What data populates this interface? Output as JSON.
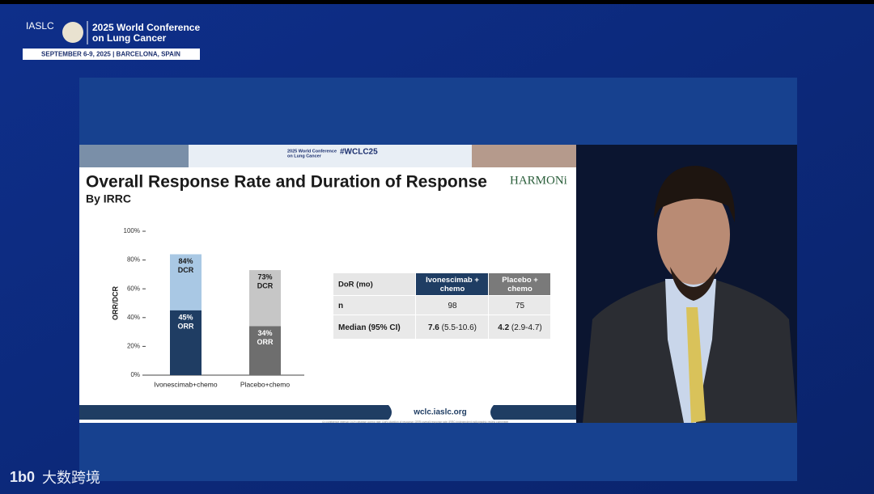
{
  "header": {
    "org": "IASLC",
    "conference": [
      "2025 World Conference",
      "on Lung Cancer"
    ],
    "dates": "SEPTEMBER 6-9, 2025  |  BARCELONA, SPAIN"
  },
  "slide": {
    "banner": {
      "conference": [
        "2025 World Conference",
        "on Lung Cancer"
      ],
      "hashtag": "#WCLC25"
    },
    "title": "Overall Response Rate and Duration of Response",
    "subtitle": "By IRRC",
    "logo": "HARMONi",
    "table": {
      "header": [
        [
          "DoR (mo)"
        ],
        [
          "Ivonescimab +",
          "chemo"
        ],
        [
          "Placebo +",
          "chemo"
        ]
      ],
      "rows": [
        [
          {
            "bold": "n",
            "rest": ""
          },
          {
            "bold": "",
            "rest": "98"
          },
          {
            "bold": "",
            "rest": "75"
          }
        ],
        [
          {
            "bold": "Median (95% CI)",
            "rest": ""
          },
          {
            "bold": "7.6",
            "rest": " (5.5-10.6)"
          },
          {
            "bold": "4.2",
            "rest": " (2.9-4.7)"
          }
        ]
      ]
    },
    "footer": "wclc.iaslc.org",
    "footnote": "CI=confidence interval; DCR=disease control rate; DoR=duration of response; ORR=overall response rate; IRRC=independent radiographic review committee"
  },
  "watermark": "大数跨境",
  "chart_data": {
    "type": "bar",
    "y_label": "ORR/DCR",
    "categories": [
      "Ivonescimab+chemo",
      "Placebo+chemo"
    ],
    "series": [
      {
        "name": "DCR",
        "colors": [
          "#a9c8e4",
          "#c6c6c6"
        ],
        "values": [
          84,
          73
        ],
        "value_labels": [
          "84%",
          "73%"
        ]
      },
      {
        "name": "ORR",
        "colors": [
          "#1f3d63",
          "#6e6e6e"
        ],
        "values": [
          45,
          34
        ],
        "value_labels": [
          "45%",
          "34%"
        ]
      }
    ],
    "ylim": [
      0,
      100
    ],
    "yticks": [
      {
        "value": 0,
        "label": "0%"
      },
      {
        "value": 20,
        "label": "20%"
      },
      {
        "value": 40,
        "label": "40%"
      },
      {
        "value": 60,
        "label": "60%"
      },
      {
        "value": 80,
        "label": "80%"
      },
      {
        "value": 100,
        "label": "100%"
      }
    ]
  }
}
